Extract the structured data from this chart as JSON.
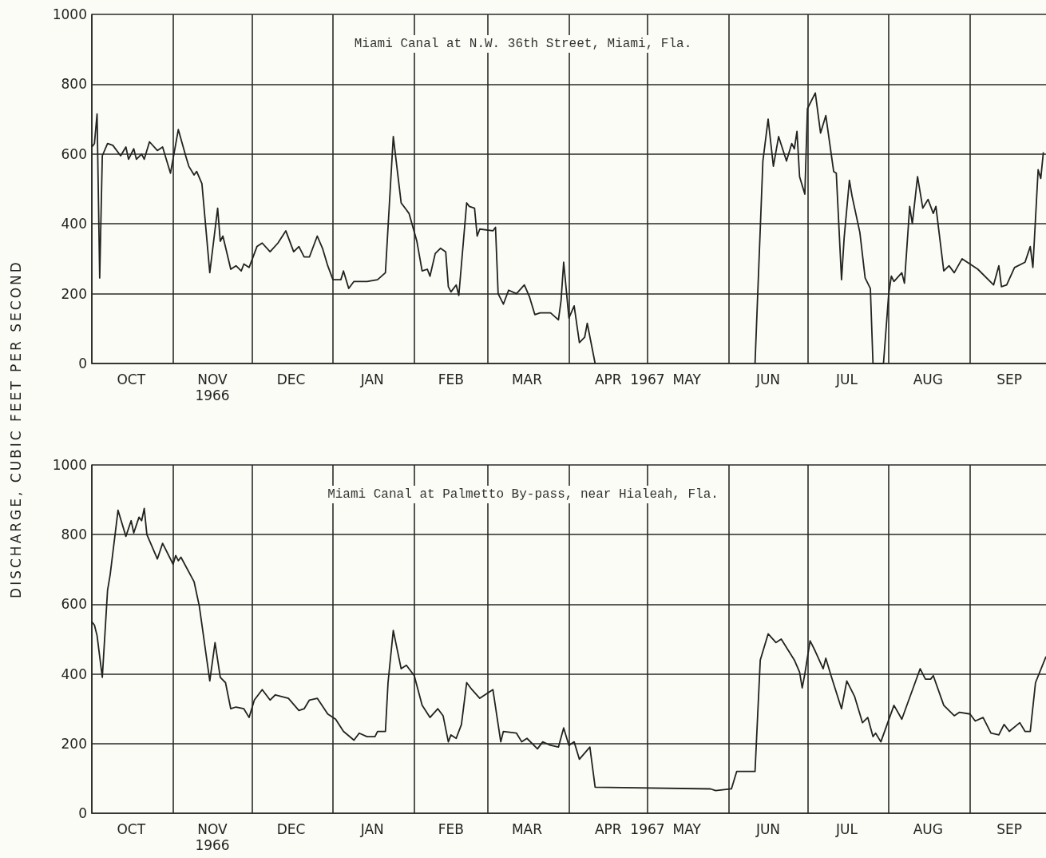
{
  "chart_data": [
    {
      "type": "line",
      "title": "Miami Canal at N.W. 36th Street, Miami, Fla.",
      "ylabel": "DISCHARGE, CUBIC FEET PER SECOND",
      "xlim": [
        "1966-10-01",
        "1967-09-30"
      ],
      "ylim": [
        0,
        1000
      ],
      "yticks": [
        0,
        200,
        400,
        600,
        800,
        1000
      ],
      "xticks": [
        {
          "value": "1966-10-01",
          "label": null
        },
        {
          "value": "1966-11-01",
          "label": null
        },
        {
          "value": "1966-12-01",
          "label": null
        },
        {
          "value": "1967-01-01",
          "label": null
        },
        {
          "value": "1967-02-01",
          "label": null
        },
        {
          "value": "1967-03-01",
          "label": null
        },
        {
          "value": "1967-04-01",
          "label": null
        },
        {
          "value": "1967-05-01",
          "label": "1967"
        },
        {
          "value": "1967-06-01",
          "label": null
        },
        {
          "value": "1967-07-01",
          "label": null
        },
        {
          "value": "1967-08-01",
          "label": null
        },
        {
          "value": "1967-09-01",
          "label": null
        },
        {
          "value": "1966-10-16",
          "label": "OCT"
        },
        {
          "value": "1966-11-16",
          "label": "NOV\n1966"
        },
        {
          "value": "1966-12-16",
          "label": "DEC"
        },
        {
          "value": "1967-01-16",
          "label": "JAN"
        },
        {
          "value": "1967-02-15",
          "label": "FEB"
        },
        {
          "value": "1967-03-16",
          "label": "MAR"
        },
        {
          "value": "1967-04-16",
          "label": "APR"
        },
        {
          "value": "1967-05-16",
          "label": "MAY"
        },
        {
          "value": "1967-06-16",
          "label": "JUN"
        },
        {
          "value": "1967-07-16",
          "label": "JUL"
        },
        {
          "value": "1967-08-16",
          "label": "AUG"
        },
        {
          "value": "1967-09-16",
          "label": "SEP"
        }
      ],
      "grid": true,
      "marker": "none",
      "line_style": "solid",
      "series": [
        {
          "color": "#222222",
          "x": [
            "1966-10-01",
            "1966-10-02",
            "1966-10-03",
            "1966-10-04",
            "1966-10-05",
            "1966-10-07",
            "1966-10-09",
            "1966-10-12",
            "1966-10-14",
            "1966-10-15",
            "1966-10-17",
            "1966-10-18",
            "1966-10-20",
            "1966-10-21",
            "1966-10-23",
            "1966-10-26",
            "1966-10-28",
            "1966-10-31",
            "1966-11-03",
            "1966-11-06",
            "1966-11-07",
            "1966-11-09",
            "1966-11-10",
            "1966-11-12",
            "1966-11-15",
            "1966-11-18",
            "1966-11-19",
            "1966-11-20",
            "1966-11-23",
            "1966-11-25",
            "1966-11-27",
            "1966-11-28",
            "1966-11-30",
            "1966-12-03",
            "1966-12-05",
            "1966-12-08",
            "1966-12-11",
            "1966-12-14",
            "1966-12-17",
            "1966-12-19",
            "1966-12-21",
            "1966-12-23",
            "1966-12-26",
            "1966-12-28",
            "1966-12-30",
            "1967-01-01",
            "1967-01-04",
            "1967-01-05",
            "1967-01-07",
            "1967-01-09",
            "1967-01-14",
            "1967-01-18",
            "1967-01-21",
            "1967-01-24",
            "1967-01-27",
            "1967-01-30",
            "1967-02-02",
            "1967-02-04",
            "1967-02-06",
            "1967-02-07",
            "1967-02-09",
            "1967-02-11",
            "1967-02-13",
            "1967-02-14",
            "1967-02-15",
            "1967-02-17",
            "1967-02-18",
            "1967-02-21",
            "1967-02-22",
            "1967-02-24",
            "1967-02-25",
            "1967-02-26",
            "1967-03-03",
            "1967-03-04",
            "1967-03-05",
            "1967-03-07",
            "1967-03-09",
            "1967-03-12",
            "1967-03-15",
            "1967-03-17",
            "1967-03-19",
            "1967-03-21",
            "1967-03-25",
            "1967-03-28",
            "1967-03-29",
            "1967-03-30",
            "1967-04-01",
            "1967-04-03",
            "1967-04-05",
            "1967-04-07",
            "1967-04-08",
            "1967-04-11",
            "1967-05-15",
            "1967-06-11",
            "1967-06-14",
            "1967-06-16",
            "1967-06-18",
            "1967-06-20",
            "1967-06-23",
            "1967-06-25",
            "1967-06-26",
            "1967-06-27",
            "1967-06-28",
            "1967-06-29",
            "1967-06-30",
            "1967-07-01",
            "1967-07-04",
            "1967-07-06",
            "1967-07-08",
            "1967-07-11",
            "1967-07-12",
            "1967-07-14",
            "1967-07-15",
            "1967-07-17",
            "1967-07-18",
            "1967-07-21",
            "1967-07-23",
            "1967-07-25",
            "1967-07-26",
            "1967-07-30",
            "1967-08-01",
            "1967-08-02",
            "1967-08-03",
            "1967-08-06",
            "1967-08-07",
            "1967-08-09",
            "1967-08-10",
            "1967-08-12",
            "1967-08-14",
            "1967-08-16",
            "1967-08-18",
            "1967-08-19",
            "1967-08-22",
            "1967-08-24",
            "1967-08-26",
            "1967-08-29",
            "1967-09-01",
            "1967-09-04",
            "1967-09-10",
            "1967-09-12",
            "1967-09-13",
            "1967-09-15",
            "1967-09-18",
            "1967-09-22",
            "1967-09-24",
            "1967-09-25",
            "1967-09-27",
            "1967-09-28",
            "1967-09-29"
          ],
          "values": [
            620,
            630,
            715,
            245,
            595,
            630,
            625,
            595,
            620,
            585,
            615,
            585,
            600,
            585,
            635,
            610,
            620,
            545,
            670,
            590,
            565,
            540,
            550,
            515,
            260,
            445,
            350,
            365,
            270,
            280,
            265,
            285,
            275,
            335,
            345,
            320,
            345,
            380,
            320,
            335,
            305,
            305,
            365,
            330,
            280,
            240,
            240,
            265,
            215,
            235,
            235,
            240,
            260,
            650,
            460,
            430,
            350,
            265,
            270,
            250,
            315,
            330,
            320,
            220,
            205,
            225,
            195,
            460,
            450,
            445,
            365,
            385,
            380,
            390,
            200,
            170,
            210,
            200,
            225,
            190,
            140,
            145,
            145,
            125,
            180,
            290,
            130,
            165,
            60,
            75,
            115,
            0,
            null,
            0,
            580,
            700,
            565,
            650,
            580,
            630,
            615,
            665,
            535,
            510,
            485,
            730,
            775,
            660,
            710,
            550,
            545,
            240,
            360,
            525,
            480,
            375,
            245,
            215,
            0,
            0,
            200,
            250,
            235,
            260,
            230,
            450,
            400,
            535,
            445,
            470,
            430,
            450,
            265,
            280,
            260,
            300,
            285,
            270,
            225,
            280,
            220,
            225,
            275,
            290,
            335,
            275,
            555,
            530,
            605
          ]
        }
      ]
    },
    {
      "type": "line",
      "title": "Miami Canal at Palmetto By-pass, near Hialeah, Fla.",
      "xlim": [
        "1966-10-01",
        "1967-09-30"
      ],
      "ylim": [
        0,
        1000
      ],
      "yticks": [
        0,
        200,
        400,
        600,
        800,
        1000
      ],
      "xticks": [
        {
          "value": "1966-10-01",
          "label": null
        },
        {
          "value": "1966-11-01",
          "label": null
        },
        {
          "value": "1966-12-01",
          "label": null
        },
        {
          "value": "1967-01-01",
          "label": null
        },
        {
          "value": "1967-02-01",
          "label": null
        },
        {
          "value": "1967-03-01",
          "label": null
        },
        {
          "value": "1967-04-01",
          "label": null
        },
        {
          "value": "1967-05-01",
          "label": "1967"
        },
        {
          "value": "1967-06-01",
          "label": null
        },
        {
          "value": "1967-07-01",
          "label": null
        },
        {
          "value": "1967-08-01",
          "label": null
        },
        {
          "value": "1967-09-01",
          "label": null
        },
        {
          "value": "1966-10-16",
          "label": "OCT"
        },
        {
          "value": "1966-11-16",
          "label": "NOV\n1966"
        },
        {
          "value": "1966-12-16",
          "label": "DEC"
        },
        {
          "value": "1967-01-16",
          "label": "JAN"
        },
        {
          "value": "1967-02-15",
          "label": "FEB"
        },
        {
          "value": "1967-03-16",
          "label": "MAR"
        },
        {
          "value": "1967-04-16",
          "label": "APR"
        },
        {
          "value": "1967-05-16",
          "label": "MAY"
        },
        {
          "value": "1967-06-16",
          "label": "JUN"
        },
        {
          "value": "1967-07-16",
          "label": "JUL"
        },
        {
          "value": "1967-08-16",
          "label": "AUG"
        },
        {
          "value": "1967-09-16",
          "label": "SEP"
        }
      ],
      "grid": true,
      "marker": "none",
      "line_style": "solid",
      "series": [
        {
          "color": "#222222",
          "x": [
            "1966-10-01",
            "1966-10-02",
            "1966-10-03",
            "1966-10-05",
            "1966-10-07",
            "1966-10-08",
            "1966-10-11",
            "1966-10-14",
            "1966-10-16",
            "1966-10-17",
            "1966-10-19",
            "1966-10-20",
            "1966-10-21",
            "1966-10-22",
            "1966-10-26",
            "1966-10-28",
            "1966-11-01",
            "1966-11-02",
            "1966-11-03",
            "1966-11-04",
            "1966-11-09",
            "1966-11-11",
            "1966-11-15",
            "1966-11-17",
            "1966-11-19",
            "1966-11-21",
            "1966-11-23",
            "1966-11-25",
            "1966-11-28",
            "1966-11-30",
            "1966-12-02",
            "1966-12-05",
            "1966-12-08",
            "1966-12-10",
            "1966-12-15",
            "1966-12-19",
            "1966-12-21",
            "1966-12-23",
            "1966-12-26",
            "1966-12-30",
            "1967-01-02",
            "1967-01-05",
            "1967-01-09",
            "1967-01-11",
            "1967-01-14",
            "1967-01-17",
            "1967-01-18",
            "1967-01-21",
            "1967-01-22",
            "1967-01-24",
            "1967-01-27",
            "1967-01-29",
            "1967-02-01",
            "1967-02-04",
            "1967-02-07",
            "1967-02-10",
            "1967-02-12",
            "1967-02-14",
            "1967-02-15",
            "1967-02-17",
            "1967-02-19",
            "1967-02-21",
            "1967-02-23",
            "1967-02-26",
            "1967-03-03",
            "1967-03-06",
            "1967-03-07",
            "1967-03-12",
            "1967-03-14",
            "1967-03-16",
            "1967-03-20",
            "1967-03-22",
            "1967-03-25",
            "1967-03-28",
            "1967-03-30",
            "1967-04-01",
            "1967-04-03",
            "1967-04-05",
            "1967-04-09",
            "1967-04-11",
            "1967-05-25",
            "1967-05-27",
            "1967-06-02",
            "1967-06-04",
            "1967-06-11",
            "1967-06-13",
            "1967-06-16",
            "1967-06-19",
            "1967-06-21",
            "1967-06-26",
            "1967-06-28",
            "1967-06-29",
            "1967-06-30",
            "1967-07-02",
            "1967-07-04",
            "1967-07-07",
            "1967-07-08",
            "1967-07-10",
            "1967-07-14",
            "1967-07-16",
            "1967-07-19",
            "1967-07-22",
            "1967-07-24",
            "1967-07-26",
            "1967-07-27",
            "1967-07-29",
            "1967-08-03",
            "1967-08-06",
            "1967-08-13",
            "1967-08-15",
            "1967-08-17",
            "1967-08-18",
            "1967-08-22",
            "1967-08-26",
            "1967-08-28",
            "1967-09-01",
            "1967-09-03",
            "1967-09-06",
            "1967-09-09",
            "1967-09-12",
            "1967-09-14",
            "1967-09-16",
            "1967-09-20",
            "1967-09-22",
            "1967-09-24",
            "1967-09-26",
            "1967-09-30"
          ],
          "values": [
            550,
            540,
            510,
            390,
            640,
            685,
            870,
            795,
            840,
            805,
            850,
            840,
            875,
            800,
            730,
            775,
            715,
            740,
            725,
            735,
            665,
            595,
            380,
            490,
            390,
            375,
            300,
            305,
            300,
            275,
            325,
            355,
            325,
            340,
            330,
            295,
            300,
            325,
            330,
            285,
            270,
            235,
            210,
            230,
            220,
            220,
            235,
            235,
            375,
            525,
            415,
            425,
            395,
            310,
            275,
            300,
            280,
            205,
            225,
            215,
            255,
            375,
            355,
            330,
            355,
            205,
            235,
            230,
            205,
            215,
            185,
            205,
            195,
            190,
            245,
            195,
            205,
            155,
            190,
            75,
            70,
            65,
            70,
            120,
            120,
            440,
            515,
            490,
            500,
            440,
            405,
            360,
            400,
            495,
            465,
            415,
            445,
            395,
            300,
            380,
            335,
            260,
            275,
            220,
            230,
            205,
            310,
            270,
            415,
            385,
            385,
            395,
            310,
            280,
            290,
            285,
            265,
            275,
            230,
            225,
            255,
            235,
            260,
            235,
            235,
            375,
            450
          ]
        }
      ]
    }
  ]
}
